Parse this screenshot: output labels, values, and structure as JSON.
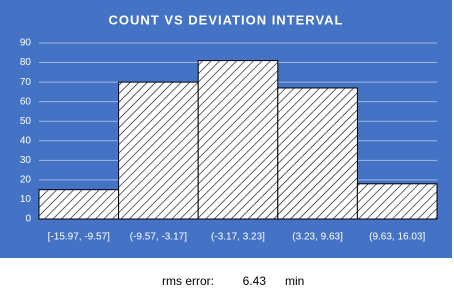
{
  "chart_data": {
    "type": "bar",
    "title": "COUNT VS DEVIATION INTERVAL",
    "categories": [
      "[-15.97, -9.57]",
      "(-9.57, -3.17]",
      "(-3.17, 3.23]",
      "(3.23, 9.63]",
      "(9.63, 16.03]"
    ],
    "values": [
      15,
      70,
      81,
      67,
      18
    ],
    "ylim": [
      0,
      90
    ],
    "yticks": [
      0,
      10,
      20,
      30,
      40,
      50,
      60,
      70,
      80,
      90
    ],
    "grid": true,
    "background": "#4472c4",
    "color": "#ffffff",
    "hatch": true
  },
  "footer": {
    "label": "rms error:",
    "value": 6.43,
    "unit": "min"
  }
}
